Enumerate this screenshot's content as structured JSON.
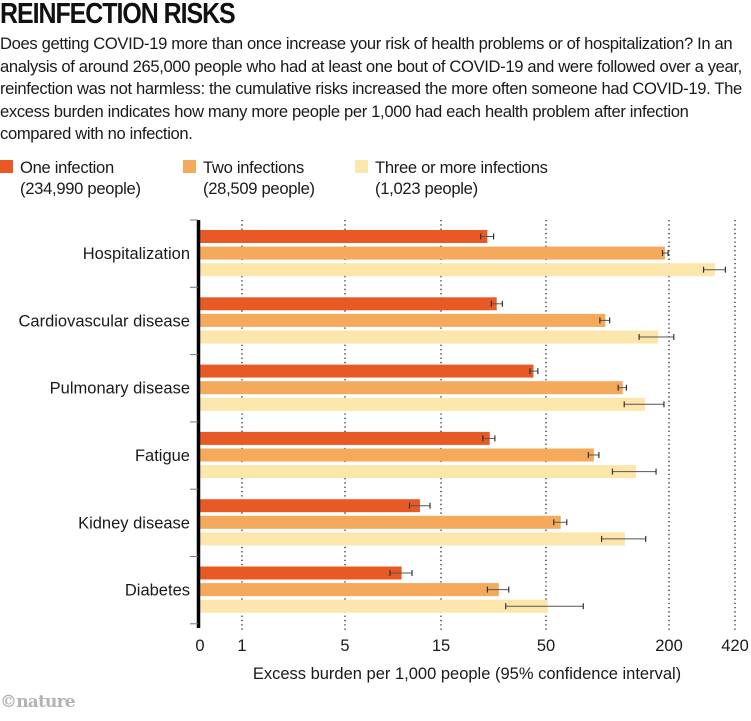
{
  "title": "REINFECTION RISKS",
  "description": "Does getting COVID-19 more than once increase your risk of health problems or of hospitalization? In an analysis of around 265,000 people who had at least one bout of COVID-19 and were followed over a year, reinfection was not harmless: the cumulative risks increased the more often someone had COVID-19. The excess burden indicates how many more people per 1,000 had each health problem after infection compared with no infection.",
  "legend": [
    {
      "label": "One infection",
      "sub": "(234,990 people)",
      "color": "#E85A25"
    },
    {
      "label": "Two infections",
      "sub": "(28,509 people)",
      "color": "#F4A95B"
    },
    {
      "label": "Three or more infections",
      "sub": "(1,023 people)",
      "color": "#FDE6AC"
    }
  ],
  "credit": "©nature",
  "chart_data": {
    "type": "bar",
    "orientation": "horizontal",
    "title": "REINFECTION RISKS",
    "xlabel": "Excess burden per 1,000 people (95% confidence interval)",
    "ylabel": "",
    "x_scale": "nonlinear (log-like)",
    "xlim": [
      0,
      420
    ],
    "x_ticks": [
      0,
      1,
      5,
      15,
      50,
      200,
      420
    ],
    "x_tick_labels": [
      "0",
      "1",
      "5",
      "15",
      "50",
      "200",
      "420"
    ],
    "grid": "vertical dotted at ticks",
    "legend_position": "top-left",
    "categories": [
      "Hospitalization",
      "Cardiovascular disease",
      "Pulmonary disease",
      "Fatigue",
      "Kidney disease",
      "Diabetes"
    ],
    "series": [
      {
        "name": "One infection (234,990 people)",
        "color": "#E85A25",
        "values": [
          25.7,
          28.6,
          43.4,
          26.4,
          11.9,
          9.7
        ],
        "ci_low": [
          23.8,
          26.9,
          41.7,
          24.4,
          10.6,
          8.5
        ],
        "ci_high": [
          27.6,
          30.5,
          45.6,
          28.0,
          13.3,
          10.9
        ]
      },
      {
        "name": "Two infections (28,509 people)",
        "color": "#F4A95B",
        "values": [
          191,
          97.9,
          119,
          86,
          59.1,
          29.3
        ],
        "ci_low": [
          186,
          92,
          113,
          80.8,
          54.6,
          25.7
        ],
        "ci_high": [
          198,
          102.7,
          124,
          91,
          63.3,
          32.8
        ]
      },
      {
        "name": "Three or more infections (1,023 people)",
        "color": "#FDE6AC",
        "values": [
          335,
          177,
          153,
          138,
          122,
          51
        ],
        "ci_low": [
          295,
          143,
          121,
          106,
          93.8,
          31.7
        ],
        "ci_high": [
          377,
          211,
          189,
          173,
          154,
          76.3
        ]
      }
    ]
  }
}
